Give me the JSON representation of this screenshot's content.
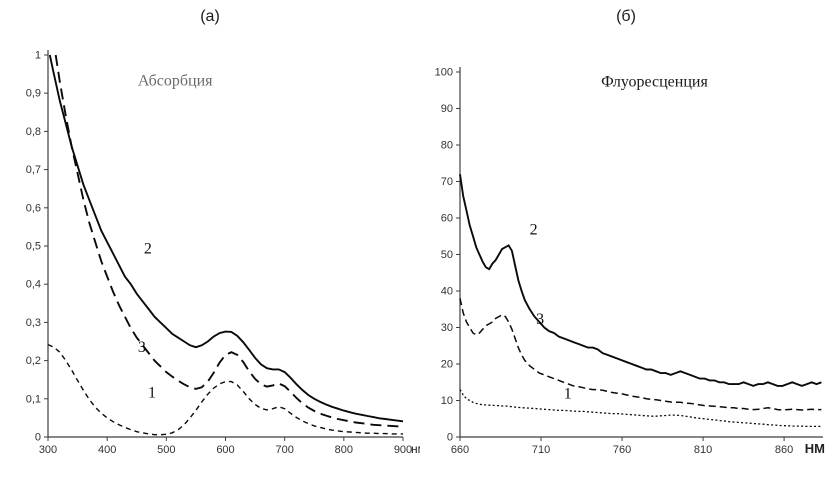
{
  "figure": {
    "background": "#ffffff",
    "line_color": "#0a0a0a",
    "axis_color": "#3f3f3f"
  },
  "chart_data": [
    {
      "type": "line",
      "panel_label": "(а)",
      "title": "Абсорбция",
      "title_pos": [
        515,
        0.92
      ],
      "title_color": "#6b6b6b",
      "xlabel": "нм",
      "xlabel_bold": false,
      "xlim": [
        300,
        900
      ],
      "ylim": [
        0,
        1
      ],
      "xticks": [
        300,
        400,
        500,
        600,
        700,
        800,
        900
      ],
      "yticks": [
        0,
        0.1,
        0.2,
        0.3,
        0.4,
        0.5,
        0.6,
        0.7,
        0.8,
        0.9,
        1
      ],
      "ytick_labels": [
        "0",
        "0,1",
        "0,2",
        "0,3",
        "0,4",
        "0,5",
        "0,6",
        "0,7",
        "0,8",
        "0,9",
        "1"
      ],
      "grid": false,
      "legend": "inline-numbers",
      "series": [
        {
          "name": "2",
          "style": "solid",
          "label_pos": [
            462,
            0.48
          ],
          "x": [
            303,
            310,
            320,
            330,
            340,
            350,
            360,
            370,
            380,
            390,
            400,
            410,
            420,
            430,
            440,
            450,
            460,
            470,
            480,
            490,
            500,
            510,
            520,
            530,
            540,
            550,
            560,
            570,
            580,
            590,
            600,
            610,
            620,
            630,
            640,
            650,
            660,
            670,
            680,
            690,
            700,
            710,
            720,
            730,
            740,
            750,
            760,
            770,
            780,
            790,
            800,
            810,
            820,
            830,
            840,
            850,
            860,
            870,
            880,
            890,
            900
          ],
          "y": [
            1.0,
            0.95,
            0.88,
            0.82,
            0.76,
            0.71,
            0.66,
            0.62,
            0.58,
            0.54,
            0.51,
            0.48,
            0.45,
            0.42,
            0.4,
            0.375,
            0.355,
            0.335,
            0.315,
            0.3,
            0.285,
            0.27,
            0.26,
            0.25,
            0.24,
            0.235,
            0.24,
            0.25,
            0.263,
            0.272,
            0.276,
            0.275,
            0.265,
            0.248,
            0.228,
            0.207,
            0.19,
            0.18,
            0.177,
            0.177,
            0.17,
            0.155,
            0.138,
            0.123,
            0.11,
            0.1,
            0.092,
            0.085,
            0.079,
            0.074,
            0.069,
            0.065,
            0.061,
            0.058,
            0.055,
            0.052,
            0.049,
            0.047,
            0.045,
            0.043,
            0.041
          ]
        },
        {
          "name": "3",
          "style": "long-dash",
          "label_pos": [
            452,
            0.222
          ],
          "x": [
            313,
            320,
            330,
            340,
            350,
            360,
            370,
            380,
            390,
            400,
            410,
            420,
            430,
            440,
            450,
            460,
            470,
            480,
            490,
            500,
            510,
            520,
            530,
            540,
            550,
            560,
            570,
            580,
            590,
            600,
            610,
            620,
            630,
            640,
            650,
            660,
            670,
            680,
            690,
            700,
            710,
            720,
            730,
            740,
            750,
            760,
            770,
            780,
            790,
            800,
            810,
            820,
            830,
            840,
            850,
            860,
            870,
            880,
            890,
            900
          ],
          "y": [
            1.0,
            0.93,
            0.84,
            0.76,
            0.69,
            0.62,
            0.56,
            0.51,
            0.46,
            0.42,
            0.38,
            0.345,
            0.315,
            0.285,
            0.26,
            0.24,
            0.22,
            0.2,
            0.185,
            0.17,
            0.158,
            0.147,
            0.138,
            0.13,
            0.126,
            0.13,
            0.145,
            0.168,
            0.195,
            0.215,
            0.222,
            0.215,
            0.196,
            0.172,
            0.152,
            0.138,
            0.132,
            0.135,
            0.14,
            0.133,
            0.118,
            0.102,
            0.088,
            0.077,
            0.068,
            0.061,
            0.056,
            0.051,
            0.047,
            0.044,
            0.041,
            0.038,
            0.036,
            0.034,
            0.032,
            0.031,
            0.03,
            0.029,
            0.028,
            0.027
          ]
        },
        {
          "name": "1",
          "style": "short-dash",
          "label_pos": [
            469,
            0.104
          ],
          "x": [
            300,
            310,
            320,
            330,
            340,
            350,
            360,
            370,
            380,
            390,
            400,
            410,
            420,
            430,
            440,
            450,
            460,
            470,
            480,
            490,
            500,
            510,
            520,
            530,
            540,
            550,
            560,
            570,
            580,
            590,
            600,
            610,
            620,
            630,
            640,
            650,
            660,
            670,
            680,
            690,
            700,
            710,
            720,
            730,
            740,
            750,
            760,
            770,
            780,
            790,
            800,
            810,
            820,
            830,
            840,
            850,
            860,
            870,
            880,
            890,
            900
          ],
          "y": [
            0.242,
            0.235,
            0.222,
            0.2,
            0.175,
            0.148,
            0.122,
            0.098,
            0.078,
            0.062,
            0.05,
            0.04,
            0.032,
            0.025,
            0.019,
            0.014,
            0.011,
            0.008,
            0.006,
            0.006,
            0.007,
            0.011,
            0.019,
            0.032,
            0.05,
            0.07,
            0.092,
            0.112,
            0.128,
            0.139,
            0.145,
            0.145,
            0.136,
            0.119,
            0.1,
            0.085,
            0.075,
            0.071,
            0.074,
            0.079,
            0.074,
            0.062,
            0.051,
            0.042,
            0.035,
            0.029,
            0.025,
            0.021,
            0.018,
            0.016,
            0.014,
            0.013,
            0.012,
            0.011,
            0.01,
            0.01,
            0.009,
            0.009,
            0.008,
            0.008,
            0.008
          ]
        }
      ]
    },
    {
      "type": "line",
      "panel_label": "(б)",
      "title": "Флуоресценция",
      "title_pos": [
        780,
        96
      ],
      "title_color": "#1a1a1a",
      "xlabel": "НМ",
      "xlabel_bold": true,
      "xlim": [
        660,
        884
      ],
      "ylim": [
        0,
        100
      ],
      "xticks": [
        660,
        710,
        760,
        810,
        860
      ],
      "yticks": [
        0,
        10,
        20,
        30,
        40,
        50,
        60,
        70,
        80,
        90,
        100
      ],
      "grid": false,
      "legend": "inline-numbers",
      "series": [
        {
          "name": "2",
          "style": "solid",
          "label_pos": [
            703,
            55.5
          ],
          "x": [
            660,
            662,
            664,
            666,
            668,
            670,
            672,
            674,
            676,
            678,
            680,
            682,
            684,
            686,
            688,
            690,
            692,
            694,
            696,
            698,
            700,
            703,
            706,
            709,
            712,
            715,
            718,
            721,
            724,
            727,
            730,
            733,
            736,
            739,
            742,
            745,
            748,
            751,
            754,
            757,
            760,
            763,
            766,
            769,
            772,
            775,
            778,
            781,
            784,
            787,
            790,
            793,
            796,
            799,
            802,
            805,
            808,
            811,
            814,
            817,
            820,
            823,
            826,
            829,
            832,
            835,
            838,
            841,
            844,
            847,
            850,
            853,
            856,
            859,
            862,
            865,
            868,
            871,
            874,
            877,
            880,
            883
          ],
          "y": [
            72,
            66,
            62,
            58,
            55,
            52,
            50,
            48,
            46.5,
            46,
            47.5,
            48.5,
            50,
            51.5,
            52,
            52.5,
            51,
            47,
            43,
            40,
            37.5,
            35,
            33,
            31.5,
            30,
            29,
            28.5,
            27.5,
            27,
            26.5,
            26,
            25.5,
            25,
            24.5,
            24.5,
            24,
            23,
            22.5,
            22,
            21.5,
            21,
            20.5,
            20,
            19.5,
            19,
            18.5,
            18.5,
            18,
            17.5,
            17.5,
            17,
            17.5,
            18,
            17.5,
            17,
            16.5,
            16,
            16,
            15.5,
            15.5,
            15,
            15,
            14.5,
            14.5,
            14.5,
            15,
            14.5,
            14,
            14.5,
            14.5,
            15,
            14.5,
            14,
            14,
            14.5,
            15,
            14.5,
            14,
            14.5,
            15,
            14.5,
            15
          ]
        },
        {
          "name": "3",
          "style": "dash",
          "label_pos": [
            707,
            31
          ],
          "x": [
            660,
            662,
            664,
            666,
            668,
            670,
            672,
            674,
            676,
            678,
            680,
            682,
            684,
            686,
            688,
            690,
            692,
            694,
            696,
            698,
            700,
            703,
            706,
            709,
            712,
            715,
            718,
            721,
            724,
            727,
            730,
            733,
            736,
            739,
            742,
            745,
            748,
            751,
            754,
            757,
            760,
            763,
            766,
            769,
            772,
            775,
            778,
            781,
            784,
            787,
            790,
            793,
            796,
            799,
            802,
            805,
            808,
            811,
            814,
            817,
            820,
            823,
            826,
            829,
            832,
            835,
            838,
            841,
            844,
            847,
            850,
            853,
            856,
            859,
            862,
            865,
            868,
            871,
            874,
            877,
            880,
            883
          ],
          "y": [
            38,
            34,
            31.5,
            30,
            28.5,
            28,
            28.5,
            29.5,
            30.5,
            31,
            31.5,
            32.5,
            33,
            33.5,
            33,
            31.5,
            29.5,
            27,
            24.5,
            22.5,
            21,
            19.5,
            18.5,
            17.5,
            17,
            16.5,
            16,
            15.5,
            15,
            14.5,
            14,
            13.8,
            13.5,
            13.2,
            13,
            13,
            12.8,
            12.5,
            12.2,
            12,
            11.8,
            11.5,
            11.2,
            11,
            10.8,
            10.5,
            10.3,
            10.2,
            10,
            9.8,
            9.6,
            9.5,
            9.5,
            9.3,
            9.2,
            9,
            8.8,
            8.6,
            8.5,
            8.4,
            8.3,
            8.2,
            8,
            8,
            7.8,
            7.8,
            7.6,
            7.5,
            7.6,
            7.8,
            8,
            7.8,
            7.5,
            7.4,
            7.5,
            7.6,
            7.5,
            7.4,
            7.5,
            7.6,
            7.5,
            7.5
          ]
        },
        {
          "name": "1",
          "style": "dot",
          "label_pos": [
            724,
            10.5
          ],
          "x": [
            660,
            662,
            664,
            666,
            668,
            670,
            672,
            674,
            676,
            678,
            680,
            682,
            684,
            686,
            688,
            690,
            692,
            694,
            696,
            698,
            700,
            703,
            706,
            709,
            712,
            715,
            718,
            721,
            724,
            727,
            730,
            733,
            736,
            739,
            742,
            745,
            748,
            751,
            754,
            757,
            760,
            763,
            766,
            769,
            772,
            775,
            778,
            781,
            784,
            787,
            790,
            793,
            796,
            799,
            802,
            805,
            808,
            811,
            814,
            817,
            820,
            823,
            826,
            829,
            832,
            835,
            838,
            841,
            844,
            847,
            850,
            853,
            856,
            859,
            862,
            865,
            868,
            871,
            874,
            877,
            880,
            883
          ],
          "y": [
            13,
            11.5,
            10.5,
            10,
            9.5,
            9.2,
            9,
            8.8,
            8.8,
            8.7,
            8.7,
            8.6,
            8.6,
            8.5,
            8.5,
            8.4,
            8.3,
            8.2,
            8.1,
            8,
            8,
            7.9,
            7.8,
            7.7,
            7.6,
            7.5,
            7.4,
            7.3,
            7.3,
            7.2,
            7.1,
            7,
            7,
            6.9,
            6.8,
            6.7,
            6.6,
            6.5,
            6.4,
            6.4,
            6.3,
            6.2,
            6.1,
            6,
            5.9,
            5.8,
            5.7,
            5.7,
            5.8,
            5.9,
            6,
            6,
            5.9,
            5.7,
            5.5,
            5.3,
            5.1,
            5,
            4.8,
            4.7,
            4.5,
            4.4,
            4.2,
            4.1,
            4,
            3.9,
            3.8,
            3.7,
            3.6,
            3.5,
            3.4,
            3.3,
            3.2,
            3.1,
            3.1,
            3,
            3,
            3,
            2.9,
            2.9,
            2.9,
            2.9
          ]
        }
      ]
    }
  ]
}
